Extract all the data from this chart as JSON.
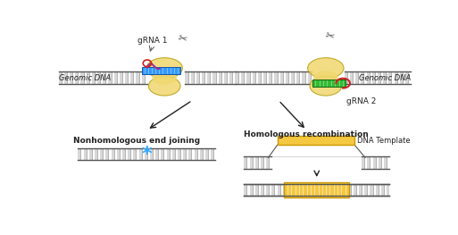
{
  "fig_width": 5.13,
  "fig_height": 2.63,
  "dpi": 100,
  "bg_color": "#ffffff",
  "dna_stripe_color": "#d8d8d8",
  "dna_border_color": "#666666",
  "dna_rail_color": "#555555",
  "cas9_color": "#f0d870",
  "cas9_border": "#b8a010",
  "cas9_alpha": 0.85,
  "grna1_label": "gRNA 1",
  "grna2_label": "gRNA 2",
  "genomic_dna_label": "Genomic DNA",
  "nhej_label": "Nonhomologous end joining",
  "hr_label": "Homologous recombination",
  "dna_template_label": "DNA Template",
  "blue_guide_color": "#3399ff",
  "green_guide_color": "#33bb33",
  "red_rna_color": "#cc2222",
  "purple_color": "#993399",
  "star_color": "#33aaff",
  "insert_color": "#f5c842",
  "insert_border": "#cc9900",
  "arrow_color": "#222222",
  "text_color": "#222222",
  "scissors_color": "#555555",
  "label_fontsize": 6.0,
  "grna_fontsize": 6.5
}
